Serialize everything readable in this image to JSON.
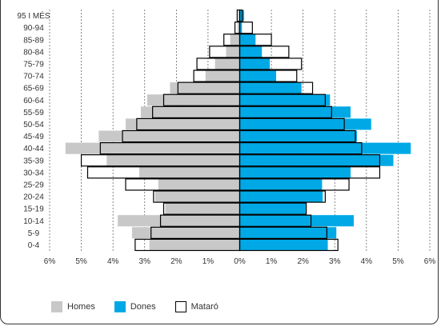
{
  "chart_data": {
    "type": "bar",
    "subtype": "population-pyramid",
    "orientation": "horizontal",
    "categories": [
      "95 I MÉS",
      "90-94",
      "85-89",
      "80-84",
      "75-79",
      "70-74",
      "65-69",
      "60-64",
      "55-59",
      "50-54",
      "45-49",
      "40-44",
      "35-39",
      "30-34",
      "25-29",
      "20-24",
      "15-19",
      "10-14",
      "5-9",
      "0-4"
    ],
    "series": [
      {
        "name": "Homes",
        "side": "left",
        "color": "#c8c8c8",
        "style": "filled",
        "values": [
          0.04,
          0.07,
          0.3,
          0.43,
          0.78,
          1.08,
          2.2,
          2.92,
          3.12,
          3.6,
          4.45,
          5.5,
          4.2,
          3.17,
          2.57,
          2.67,
          2.35,
          3.85,
          3.4,
          2.85
        ]
      },
      {
        "name": "Dones",
        "side": "right",
        "color": "#00a9e6",
        "style": "filled",
        "values": [
          0.14,
          0.07,
          0.5,
          0.7,
          0.95,
          1.15,
          1.95,
          2.85,
          3.5,
          4.15,
          3.7,
          5.4,
          4.85,
          3.5,
          2.6,
          2.62,
          2.1,
          3.6,
          3.05,
          2.78
        ]
      },
      {
        "name": "Mataró",
        "style": "outline",
        "color": "#000000",
        "left": [
          0.08,
          0.15,
          0.5,
          0.95,
          1.35,
          1.45,
          1.95,
          2.4,
          2.75,
          3.25,
          3.7,
          4.4,
          5.0,
          4.8,
          3.6,
          2.72,
          2.4,
          2.5,
          2.8,
          3.3
        ],
        "right": [
          0.08,
          0.4,
          1.0,
          1.55,
          1.95,
          1.8,
          2.3,
          2.7,
          2.9,
          3.3,
          3.65,
          3.85,
          4.42,
          4.42,
          3.45,
          2.7,
          2.1,
          2.25,
          2.75,
          3.1
        ]
      }
    ],
    "xlim": [
      -6,
      6
    ],
    "xticks": [
      "6%",
      "5%",
      "4%",
      "3%",
      "2%",
      "1%",
      "0%",
      "1%",
      "2%",
      "3%",
      "4%",
      "5%",
      "6%"
    ],
    "grid": true,
    "legend_position": "bottom-left"
  }
}
